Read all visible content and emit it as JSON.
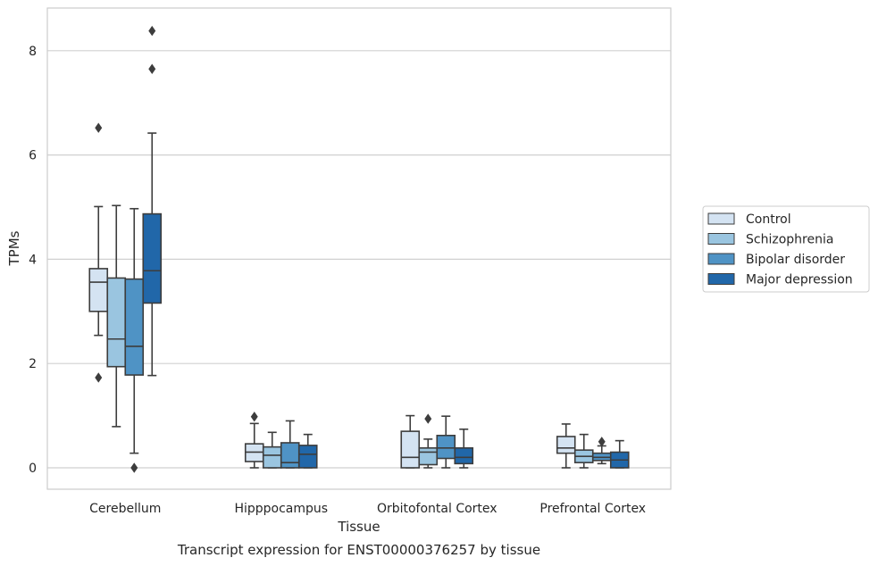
{
  "chart_data": {
    "type": "box",
    "caption": "Transcript expression for ENST00000376257 by tissue",
    "xlabel": "Tissue",
    "ylabel": "TPMs",
    "ylim": [
      -0.4,
      8.8
    ],
    "yticks": [
      0,
      2,
      4,
      6,
      8
    ],
    "grid": "horizontal",
    "legend_position": "right",
    "categories": [
      "Cerebellum",
      "Hipppocampus",
      "Orbitofontal Cortex",
      "Prefrontal Cortex"
    ],
    "series": [
      {
        "name": "Control",
        "color": "#d4e3f2",
        "boxes": [
          {
            "whislo": 2.54,
            "q1": 3.0,
            "med": 3.56,
            "q3": 3.82,
            "whishi": 5.01,
            "fliers": [
              6.52,
              1.73
            ]
          },
          {
            "whislo": 0.0,
            "q1": 0.12,
            "med": 0.3,
            "q3": 0.46,
            "whishi": 0.85,
            "fliers": [
              0.98
            ]
          },
          {
            "whislo": 0.0,
            "q1": 0.0,
            "med": 0.2,
            "q3": 0.7,
            "whishi": 1.0,
            "fliers": []
          },
          {
            "whislo": 0.0,
            "q1": 0.28,
            "med": 0.38,
            "q3": 0.6,
            "whishi": 0.84,
            "fliers": []
          }
        ]
      },
      {
        "name": "Schizophrenia",
        "color": "#9ac5e0",
        "boxes": [
          {
            "whislo": 0.79,
            "q1": 1.94,
            "med": 2.47,
            "q3": 3.64,
            "whishi": 5.03,
            "fliers": []
          },
          {
            "whislo": 0.0,
            "q1": 0.0,
            "med": 0.24,
            "q3": 0.4,
            "whishi": 0.68,
            "fliers": []
          },
          {
            "whislo": 0.0,
            "q1": 0.06,
            "med": 0.3,
            "q3": 0.38,
            "whishi": 0.55,
            "fliers": [
              0.94
            ]
          },
          {
            "whislo": 0.0,
            "q1": 0.1,
            "med": 0.22,
            "q3": 0.34,
            "whishi": 0.64,
            "fliers": []
          }
        ]
      },
      {
        "name": "Bipolar disorder",
        "color": "#4f93c5",
        "boxes": [
          {
            "whislo": 0.28,
            "q1": 1.78,
            "med": 2.33,
            "q3": 3.62,
            "whishi": 4.97,
            "fliers": [
              0.0
            ]
          },
          {
            "whislo": 0.0,
            "q1": 0.0,
            "med": 0.1,
            "q3": 0.48,
            "whishi": 0.9,
            "fliers": []
          },
          {
            "whislo": 0.0,
            "q1": 0.18,
            "med": 0.38,
            "q3": 0.62,
            "whishi": 0.99,
            "fliers": []
          },
          {
            "whislo": 0.08,
            "q1": 0.14,
            "med": 0.2,
            "q3": 0.28,
            "whishi": 0.42,
            "fliers": [
              0.5
            ]
          }
        ]
      },
      {
        "name": "Major depression",
        "color": "#2167a9",
        "boxes": [
          {
            "whislo": 1.77,
            "q1": 3.16,
            "med": 3.78,
            "q3": 4.87,
            "whishi": 6.42,
            "fliers": [
              7.65,
              8.38
            ]
          },
          {
            "whislo": 0.0,
            "q1": 0.0,
            "med": 0.26,
            "q3": 0.43,
            "whishi": 0.64,
            "fliers": []
          },
          {
            "whislo": 0.0,
            "q1": 0.08,
            "med": 0.2,
            "q3": 0.38,
            "whishi": 0.74,
            "fliers": []
          },
          {
            "whislo": 0.0,
            "q1": 0.0,
            "med": 0.15,
            "q3": 0.3,
            "whishi": 0.52,
            "fliers": []
          }
        ]
      }
    ]
  }
}
